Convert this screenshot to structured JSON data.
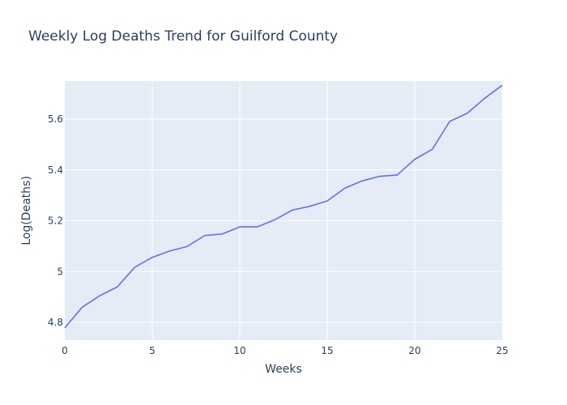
{
  "chart_data": {
    "type": "line",
    "title": "Weekly Log Deaths Trend for Guilford County",
    "xlabel": "Weeks",
    "ylabel": "Log(Deaths)",
    "xlim": [
      0,
      25
    ],
    "ylim": [
      4.73,
      5.75
    ],
    "xticks": [
      0,
      5,
      10,
      15,
      20,
      25
    ],
    "xtick_labels": [
      "0",
      "5",
      "10",
      "15",
      "20",
      "25"
    ],
    "yticks": [
      4.8,
      5.0,
      5.2,
      5.4,
      5.6
    ],
    "ytick_labels": [
      "4.8",
      "5",
      "5.2",
      "5.4",
      "5.6"
    ],
    "grid": true,
    "background": "#e5ecf6",
    "line_color": "#636efa",
    "series": [
      {
        "x": [
          0,
          1,
          2,
          3,
          4,
          5,
          6,
          7,
          8,
          9,
          10,
          11,
          12,
          13,
          14,
          15,
          16,
          17,
          18,
          19,
          20,
          21,
          22,
          23,
          24,
          25
        ],
        "values": [
          4.779,
          4.86,
          4.905,
          4.94,
          5.017,
          5.056,
          5.081,
          5.099,
          5.142,
          5.148,
          5.176,
          5.176,
          5.204,
          5.242,
          5.257,
          5.278,
          5.328,
          5.357,
          5.375,
          5.38,
          5.442,
          5.481,
          5.591,
          5.623,
          5.682,
          5.733
        ]
      }
    ]
  }
}
